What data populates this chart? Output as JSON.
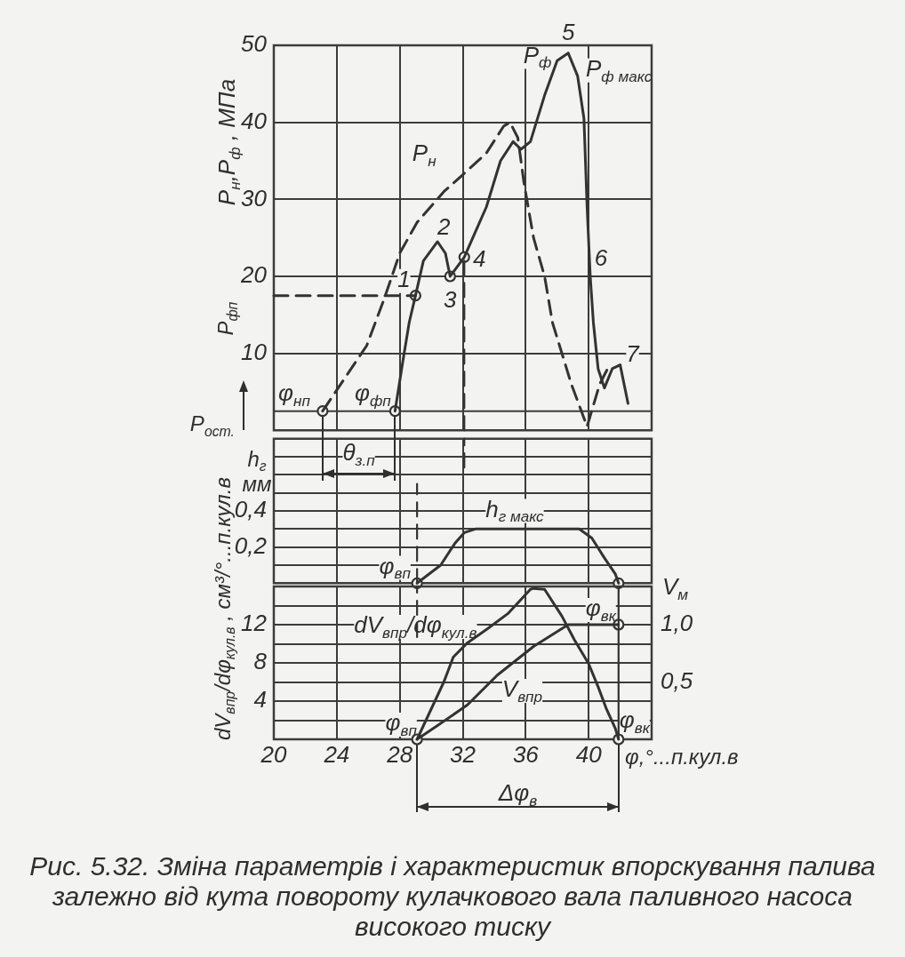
{
  "chart_data": [
    {
      "type": "line",
      "ylabel": "P$_{н}$,P$_{ф}$ , МПа",
      "xlim": [
        20,
        44
      ],
      "xticks": [
        20,
        24,
        28,
        32,
        36,
        40
      ],
      "ylim": [
        0,
        50
      ],
      "yticks": [
        10,
        20,
        30,
        40,
        50
      ],
      "tick_labels": "y",
      "grid": true,
      "series": [
        {
          "type": "line",
          "color": "#333333",
          "line_style": "dashed",
          "x": [
            23.1,
            25.9,
            27.0,
            28.0,
            29.1,
            30.8,
            31.9,
            33.5,
            34.6,
            35.0,
            35.5,
            35.9,
            36.5,
            37.2,
            37.7,
            38.9,
            39.9,
            40.7,
            41.2
          ],
          "values": [
            2.5,
            11,
            17,
            23,
            27,
            31,
            33,
            36,
            39.5,
            40,
            38,
            32,
            25,
            20,
            14,
            6,
            0.5,
            6,
            8
          ]
        },
        {
          "type": "line",
          "color": "#333333",
          "line_style": "solid",
          "x": [
            27.7,
            28.2,
            28.6,
            29.0,
            29.5,
            30.4,
            30.9,
            31.2,
            32.1,
            33.5,
            34.4,
            35.2,
            35.7,
            36.3,
            37.2,
            38.0,
            38.7,
            39.3,
            39.7,
            39.9,
            40.1,
            40.3,
            40.6,
            41.0,
            41.5,
            42.0,
            42.5
          ],
          "values": [
            2.5,
            9,
            14,
            17.5,
            22,
            24.5,
            23,
            20,
            22.5,
            29,
            35,
            37.5,
            36.5,
            37.5,
            43.5,
            48,
            49,
            46,
            40.5,
            29,
            20,
            14,
            8,
            5.5,
            8,
            8.5,
            3.5
          ]
        },
        {
          "name": "P$_{фп}$",
          "type": "line",
          "color": "#333333",
          "line_style": "dashed",
          "x": [
            20,
            29.0
          ],
          "values": [
            17.5,
            17.5
          ]
        },
        {
          "type": "line",
          "color": "#333333",
          "line_style": "dashed",
          "x": [
            32.1,
            32.1
          ],
          "values": [
            0,
            22.5
          ]
        },
        {
          "type": "scatter",
          "color": "#333333",
          "marker": "circle",
          "x": [
            23.1,
            27.7,
            29.0,
            31.2,
            32.1
          ],
          "values": [
            2.5,
            2.5,
            17.5,
            20,
            22.5
          ]
        }
      ],
      "ref_lines": [
        {
          "axis": "y",
          "value": 2.5,
          "label": "P$_{ост.}$"
        }
      ],
      "annotations": [
        {
          "text": "P$_{н}$",
          "x": 30.8,
          "y": 31
        },
        {
          "text": "P$_{ф}$",
          "x": 37.2,
          "y": 43.5
        },
        {
          "text": "P$_{ф макс}$",
          "x": 38.7,
          "y": 49
        },
        {
          "text": "1",
          "x": 29.0,
          "y": 17.5
        },
        {
          "text": "2",
          "x": 30.4,
          "y": 24.5
        },
        {
          "text": "3",
          "x": 31.2,
          "y": 20
        },
        {
          "text": "4",
          "x": 32.1,
          "y": 22.5
        },
        {
          "text": "5",
          "x": 38.7,
          "y": 49
        },
        {
          "text": "6",
          "x": 40.1,
          "y": 20
        },
        {
          "text": "7",
          "x": 42.0,
          "y": 8.5
        },
        {
          "text": "φ$_{нп}$",
          "x": 23.1,
          "y": 2.5
        },
        {
          "text": "φ$_{фп}$",
          "x": 27.7,
          "y": 2.5
        }
      ]
    },
    {
      "type": "line",
      "ylabel": "h$_{г}$ мм",
      "xlim": [
        20,
        44
      ],
      "xticks": [
        20,
        24,
        28,
        32,
        36,
        40
      ],
      "ylim": [
        0,
        0.8
      ],
      "yticks": [
        {
          "value": 0.1,
          "label": null
        },
        {
          "value": 0.2,
          "label": "0,2"
        },
        {
          "value": 0.3,
          "label": null
        },
        {
          "value": 0.4,
          "label": "0,4"
        },
        {
          "value": 0.5,
          "label": null
        },
        {
          "value": 0.6,
          "label": null
        },
        {
          "value": 0.7,
          "label": null
        }
      ],
      "tick_labels": "y",
      "grid": true,
      "series": [
        {
          "type": "line",
          "color": "#333333",
          "line_style": "solid",
          "x": [
            29.1,
            30.6,
            31.5,
            32.1,
            32.8,
            39.4,
            40.2,
            41.0,
            41.7,
            41.9
          ],
          "values": [
            0,
            0.1,
            0.22,
            0.28,
            0.3,
            0.3,
            0.25,
            0.14,
            0.05,
            0
          ]
        },
        {
          "type": "line",
          "color": "#333333",
          "line_style": "dashed",
          "x": [
            29.1,
            29.1
          ],
          "values": [
            0,
            0.55
          ]
        },
        {
          "type": "line",
          "color": "#333333",
          "line_style": "dashed",
          "x": [
            32.1,
            32.1
          ],
          "values": [
            0.64,
            0.8
          ]
        },
        {
          "type": "scatter",
          "color": "#333333",
          "marker": "circle",
          "x": [
            29.1,
            41.9
          ],
          "values": [
            0,
            0
          ]
        }
      ],
      "annotations": [
        "θ$_{з.п}$",
        {
          "text": "h$_{г макс}$",
          "x": 35.3,
          "y": 0.3
        },
        {
          "text": "φ$_{вп}$",
          "x": 29.1,
          "y": 0
        }
      ]
    },
    {
      "type": "line",
      "ylabel": "dV$_{впр}$/dφ$_{кул.в}$ , см³/°...п.кул.в",
      "y2label": "V$_{м}$",
      "xlabel": "φ,°...п.кул.в",
      "xlim": [
        20,
        44
      ],
      "xticks": [
        20,
        24,
        28,
        32,
        36,
        40
      ],
      "ylim": [
        0,
        16
      ],
      "yticks": [
        {
          "value": 2,
          "label": null
        },
        4,
        {
          "value": 6,
          "label": null
        },
        8,
        {
          "value": 10,
          "label": null
        },
        12,
        {
          "value": 14,
          "label": null
        }
      ],
      "y2lim": [
        0,
        1.333
      ],
      "y2ticks": [
        {
          "value": 0.5,
          "label": "0,5"
        },
        {
          "value": 1.0,
          "label": "1,0"
        }
      ],
      "grid": true,
      "series": [
        {
          "type": "line",
          "color": "#333333",
          "line_style": "solid",
          "x": [
            29.1,
            30.8,
            31.4,
            32.3,
            33.6,
            34.9,
            36.3,
            36.5,
            37.2,
            38.3,
            39.1,
            40.0,
            40.6,
            41.1,
            41.7,
            41.9
          ],
          "values": [
            0,
            6,
            8.6,
            10.1,
            11.6,
            13.2,
            15.7,
            15.8,
            15.7,
            12.9,
            10.4,
            7.9,
            5.5,
            3.3,
            1.1,
            0
          ]
        },
        {
          "type": "line",
          "axis": "y2",
          "color": "#333333",
          "line_style": "solid",
          "x": [
            29.1,
            30.4,
            32.3,
            34.2,
            36.5,
            38.7,
            40.2,
            41.9
          ],
          "values": [
            0,
            0.12,
            0.3,
            0.56,
            0.81,
            1.0,
            1.0,
            1.0
          ]
        },
        {
          "type": "line",
          "color": "#333333",
          "line_style": "dashed",
          "x": [
            29.1,
            29.1
          ],
          "values": [
            10.7,
            16
          ]
        },
        {
          "type": "line",
          "color": "#333333",
          "line_style": "solid",
          "x": [
            41.9,
            41.9
          ],
          "values": [
            0,
            16
          ]
        },
        {
          "type": "scatter",
          "color": "#333333",
          "marker": "circle",
          "x": [
            29.1,
            41.9
          ],
          "values": [
            0,
            0
          ]
        },
        {
          "type": "scatter",
          "axis": "y2",
          "color": "#333333",
          "marker": "circle",
          "x": [
            41.9
          ],
          "values": [
            1.0
          ]
        }
      ],
      "annotations": [
        {
          "text": "dV$_{впр}$/dφ$_{кул.в}$",
          "x": 29.0,
          "y": 12.0
        },
        {
          "text": "V$_{впр}$",
          "x": 34.2,
          "y": 6.7
        },
        {
          "text": "φ$_{вк}$",
          "x": 41.9,
          "y": 16
        },
        {
          "text": "φ$_{вп}$",
          "x": 29.1,
          "y": 0
        },
        {
          "text": "φ$_{вк}$",
          "x": 41.9,
          "y": 0
        },
        "Δφ$_{в}$",
        "Рис. 5.32. Зміна параметрів і характеристик впорскування палива залежно від кута повороту кулачкового вала паливного насоса високого тиску"
      ]
    }
  ]
}
